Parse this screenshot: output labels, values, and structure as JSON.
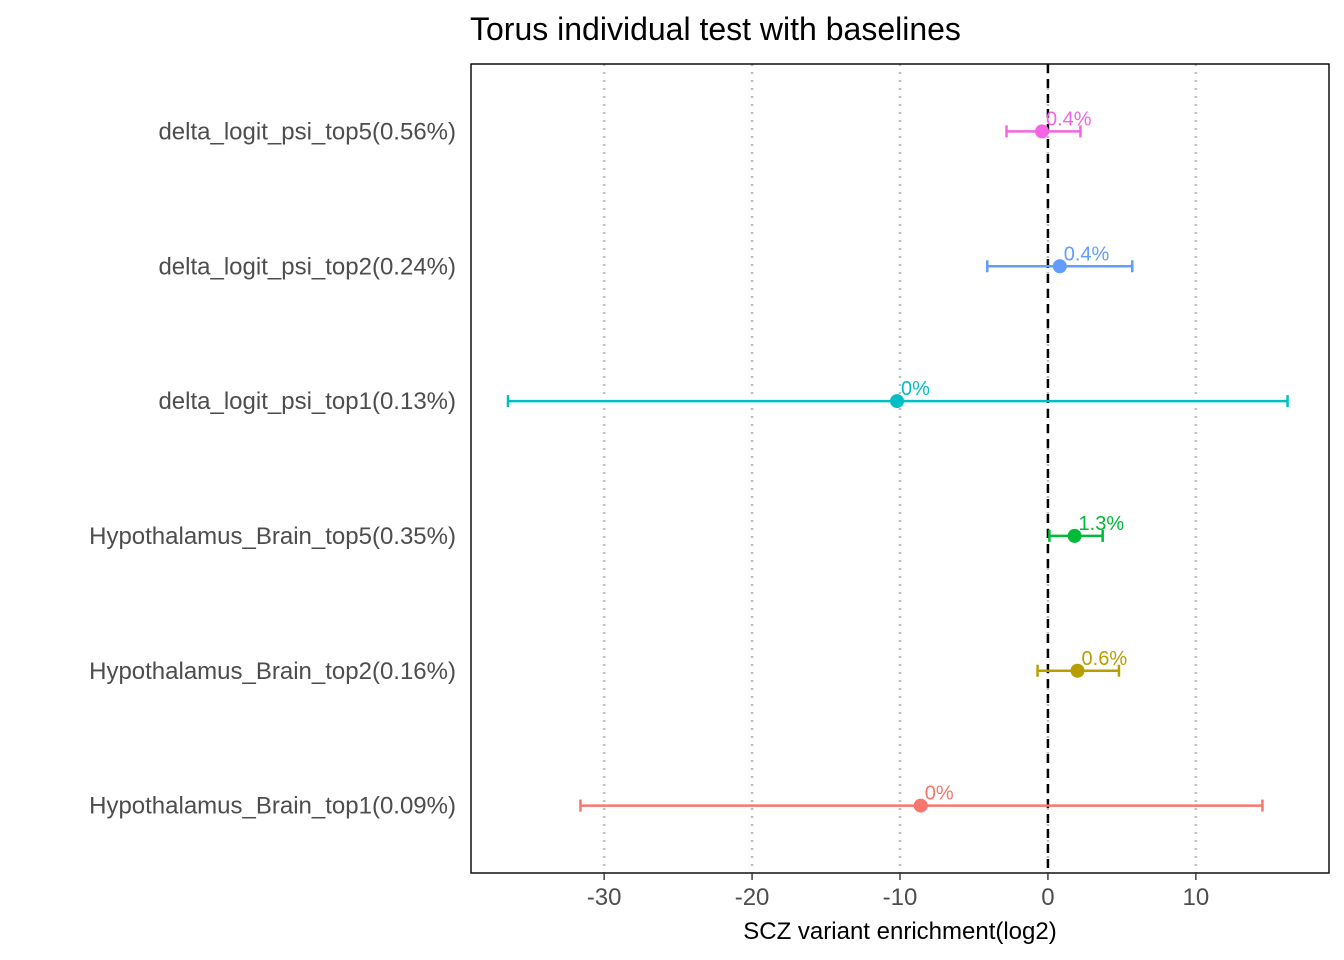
{
  "chart_data": {
    "type": "forest",
    "title": "Torus individual test with baselines",
    "xlabel": "SCZ variant enrichment(log2)",
    "ylabel": "",
    "xlim": [
      -39,
      19
    ],
    "x_ticks": [
      -30,
      -20,
      -10,
      0,
      10
    ],
    "x_tick_labels": [
      "-30",
      "-20",
      "-10",
      "0",
      "10"
    ],
    "reference_line": 0,
    "grid": "vertical dotted",
    "legend": "none",
    "series": [
      {
        "name": "Hypothalamus_Brain_top1(0.09%)",
        "estimate": -8.6,
        "low": -31.6,
        "high": 14.5,
        "label": "0%",
        "color": "#F8766D"
      },
      {
        "name": "Hypothalamus_Brain_top2(0.16%)",
        "estimate": 2.0,
        "low": -0.7,
        "high": 4.8,
        "label": "0.6%",
        "color": "#B79F00"
      },
      {
        "name": "Hypothalamus_Brain_top5(0.35%)",
        "estimate": 1.8,
        "low": 0.1,
        "high": 3.7,
        "label": "1.3%",
        "color": "#00BA38"
      },
      {
        "name": "delta_logit_psi_top1(0.13%)",
        "estimate": -10.2,
        "low": -36.5,
        "high": 16.2,
        "label": "0%",
        "color": "#00BFC4"
      },
      {
        "name": "delta_logit_psi_top2(0.24%)",
        "estimate": 0.8,
        "low": -4.1,
        "high": 5.7,
        "label": "0.4%",
        "color": "#619CFF"
      },
      {
        "name": "delta_logit_psi_top5(0.56%)",
        "estimate": -0.4,
        "low": -2.8,
        "high": 2.2,
        "label": "0.4%",
        "color": "#F564E3"
      }
    ]
  }
}
